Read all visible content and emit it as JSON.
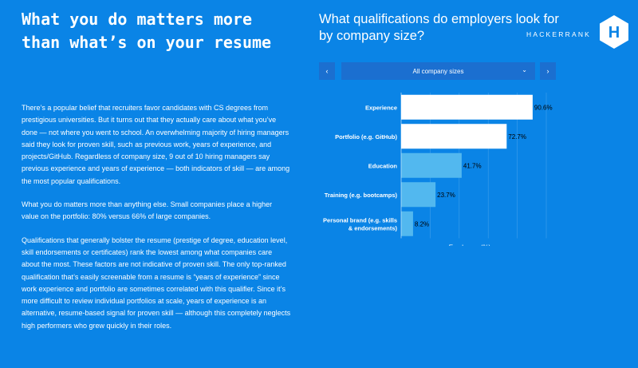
{
  "article": {
    "headline": "What you do matters more than what’s on your resume",
    "paragraphs": [
      "There’s a popular belief that recruiters favor candidates with CS degrees from prestigious universities. But it turns out that they actually care about what you’ve done — not where you went to school. An overwhelming majority of hiring managers said they look for proven skill, such as previous work, years of experience, and projects/GitHub. Regardless of company size, 9 out of 10 hiring managers say previous experience and years of experience — both indicators of skill — are among the most popular qualifications.",
      "What you do matters more than anything else. Small companies place a higher value on the portfolio: 80% versus 66% of large companies.",
      "Qualifications that generally bolster the resume (prestige of degree, education level, skill endorsements or certificates) rank the lowest among what companies care about the most. These factors are not indicative of proven skill. The only top-ranked qualification that’s easily screenable from a resume is “years of experience” since work experience and portfolio are sometimes correlated with this qualifier. Since it’s more difficult to review individual portfolios at scale, years of experience is an alternative, resume-based signal for proven skill — although this completely neglects high performers who grew quickly in their roles."
    ]
  },
  "brand": {
    "name": "HACKERRANK",
    "logo_letter": "H"
  },
  "controls": {
    "prev_icon": "‹",
    "next_icon": "›",
    "selected": "All company sizes",
    "chevron": "⌄"
  },
  "colors": {
    "background": "#0a84e6",
    "bar_highlight": "#ffffff",
    "bar_normal": "#52b8ef",
    "control": "#1b6fd0"
  },
  "chart_data": {
    "type": "bar",
    "orientation": "horizontal",
    "title": "What qualifications do employers look for by company size?",
    "categories": [
      "Experience",
      "Portfolio (e.g. GitHub)",
      "Education",
      "Training (e.g. bootcamps)",
      "Personal brand (e.g. skills & endorsements)"
    ],
    "category_lines": [
      [
        "Experience"
      ],
      [
        "Portfolio (e.g. GitHub)"
      ],
      [
        "Education"
      ],
      [
        "Training (e.g. bootcamps)"
      ],
      [
        "Personal brand (e.g. skills",
        "& endorsements)"
      ]
    ],
    "values": [
      90.6,
      72.7,
      41.7,
      23.7,
      8.2
    ],
    "value_labels": [
      "90.6%",
      "72.7%",
      "41.7%",
      "23.7%",
      "8.2%"
    ],
    "highlighted": [
      true,
      true,
      false,
      false,
      false
    ],
    "xlabel": "Employers (%)",
    "xlim": [
      0,
      100
    ],
    "grid": true
  }
}
